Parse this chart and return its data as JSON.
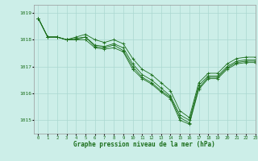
{
  "title": "Graphe pression niveau de la mer (hPa)",
  "background_color": "#cceee8",
  "grid_color": "#aad8d0",
  "line_color": "#1a6e1a",
  "xlim": [
    -0.5,
    23
  ],
  "ylim": [
    1014.5,
    1019.3
  ],
  "yticks": [
    1015,
    1016,
    1017,
    1018,
    1019
  ],
  "xticks": [
    0,
    1,
    2,
    3,
    4,
    5,
    6,
    7,
    8,
    9,
    10,
    11,
    12,
    13,
    14,
    15,
    16,
    17,
    18,
    19,
    20,
    21,
    22,
    23
  ],
  "series": [
    [
      1018.8,
      1018.1,
      1018.1,
      1018.0,
      1018.0,
      1018.0,
      1017.7,
      1017.65,
      1017.7,
      1017.55,
      1016.9,
      1016.55,
      1016.35,
      1016.05,
      1015.8,
      1015.0,
      1014.85,
      1016.15,
      1016.55,
      1016.55,
      1016.9,
      1017.1,
      1017.15,
      1017.15
    ],
    [
      1018.8,
      1018.1,
      1018.1,
      1018.0,
      1018.0,
      1018.1,
      1017.75,
      1017.7,
      1017.8,
      1017.6,
      1017.0,
      1016.6,
      1016.4,
      1016.1,
      1015.85,
      1015.1,
      1014.9,
      1016.2,
      1016.6,
      1016.6,
      1016.95,
      1017.15,
      1017.2,
      1017.2
    ],
    [
      1018.8,
      1018.1,
      1018.1,
      1018.0,
      1018.05,
      1018.1,
      1017.8,
      1017.75,
      1017.85,
      1017.7,
      1017.1,
      1016.7,
      1016.5,
      1016.2,
      1015.9,
      1015.2,
      1015.0,
      1016.3,
      1016.65,
      1016.65,
      1017.0,
      1017.2,
      1017.25,
      1017.25
    ],
    [
      1018.8,
      1018.1,
      1018.1,
      1018.0,
      1018.1,
      1018.2,
      1018.0,
      1017.9,
      1018.0,
      1017.85,
      1017.3,
      1016.9,
      1016.7,
      1016.4,
      1016.1,
      1015.35,
      1015.1,
      1016.4,
      1016.75,
      1016.75,
      1017.1,
      1017.3,
      1017.35,
      1017.35
    ]
  ],
  "tick_fontsize": 4.0,
  "xlabel_fontsize": 5.5
}
